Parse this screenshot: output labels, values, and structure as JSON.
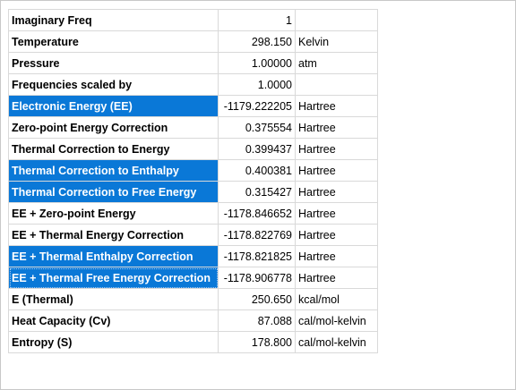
{
  "rows": [
    {
      "label": "Imaginary Freq",
      "value": "1",
      "unit": "",
      "selected": false
    },
    {
      "label": "Temperature",
      "value": "298.150",
      "unit": "Kelvin",
      "selected": false
    },
    {
      "label": "Pressure",
      "value": "1.00000",
      "unit": "atm",
      "selected": false
    },
    {
      "label": "Frequencies scaled by",
      "value": "1.0000",
      "unit": "",
      "selected": false
    },
    {
      "label": "Electronic Energy (EE)",
      "value": "-1179.222205",
      "unit": "Hartree",
      "selected": true
    },
    {
      "label": "Zero-point Energy Correction",
      "value": "0.375554",
      "unit": "Hartree",
      "selected": false
    },
    {
      "label": "Thermal Correction to Energy",
      "value": "0.399437",
      "unit": "Hartree",
      "selected": false
    },
    {
      "label": "Thermal Correction to Enthalpy",
      "value": "0.400381",
      "unit": "Hartree",
      "selected": true
    },
    {
      "label": "Thermal Correction to Free Energy",
      "value": "0.315427",
      "unit": "Hartree",
      "selected": true
    },
    {
      "label": "EE + Zero-point Energy",
      "value": "-1178.846652",
      "unit": "Hartree",
      "selected": false
    },
    {
      "label": "EE + Thermal Energy Correction",
      "value": "-1178.822769",
      "unit": "Hartree",
      "selected": false
    },
    {
      "label": "EE + Thermal Enthalpy Correction",
      "value": "-1178.821825",
      "unit": "Hartree",
      "selected": true
    },
    {
      "label": "EE + Thermal Free Energy Correction",
      "value": "-1178.906778",
      "unit": "Hartree",
      "selected": true
    },
    {
      "label": "E (Thermal)",
      "value": "250.650",
      "unit": "kcal/mol",
      "selected": false
    },
    {
      "label": "Heat Capacity (Cv)",
      "value": "87.088",
      "unit": "cal/mol-kelvin",
      "selected": false
    },
    {
      "label": "Entropy (S)",
      "value": "178.800",
      "unit": "cal/mol-kelvin",
      "selected": false
    }
  ],
  "colors": {
    "selection": "#0a78d7",
    "grid_line": "#d9d9d9"
  }
}
